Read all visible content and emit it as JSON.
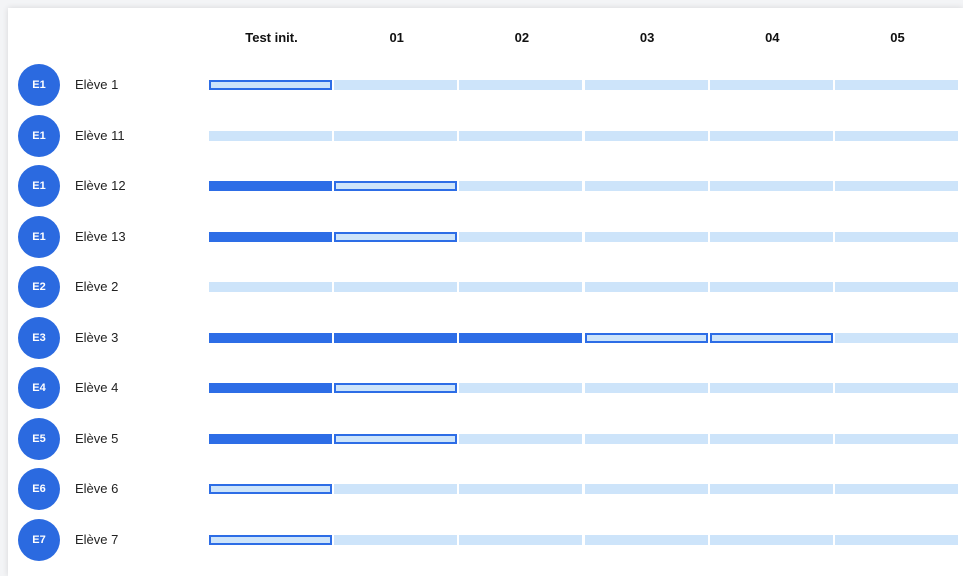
{
  "table": {
    "columns": [
      "Test init.",
      "01",
      "02",
      "03",
      "04",
      "05"
    ],
    "rows": [
      {
        "badge": "E1",
        "name": "Elève 1",
        "cells": [
          "current",
          "todo",
          "todo",
          "todo",
          "todo",
          "todo"
        ]
      },
      {
        "badge": "E1",
        "name": "Elève 11",
        "cells": [
          "todo",
          "todo",
          "todo",
          "todo",
          "todo",
          "todo"
        ]
      },
      {
        "badge": "E1",
        "name": "Elève 12",
        "cells": [
          "done",
          "current",
          "todo",
          "todo",
          "todo",
          "todo"
        ]
      },
      {
        "badge": "E1",
        "name": "Elève 13",
        "cells": [
          "done",
          "current",
          "todo",
          "todo",
          "todo",
          "todo"
        ]
      },
      {
        "badge": "E2",
        "name": "Elève 2",
        "cells": [
          "todo",
          "todo",
          "todo",
          "todo",
          "todo",
          "todo"
        ]
      },
      {
        "badge": "E3",
        "name": "Elève 3",
        "cells": [
          "done",
          "done",
          "done",
          "current",
          "current",
          "todo"
        ]
      },
      {
        "badge": "E4",
        "name": "Elève 4",
        "cells": [
          "done",
          "current",
          "todo",
          "todo",
          "todo",
          "todo"
        ]
      },
      {
        "badge": "E5",
        "name": "Elève 5",
        "cells": [
          "done",
          "current",
          "todo",
          "todo",
          "todo",
          "todo"
        ]
      },
      {
        "badge": "E6",
        "name": "Elève 6",
        "cells": [
          "current",
          "todo",
          "todo",
          "todo",
          "todo",
          "todo"
        ]
      },
      {
        "badge": "E7",
        "name": "Elève 7",
        "cells": [
          "current",
          "todo",
          "todo",
          "todo",
          "todo",
          "todo"
        ]
      }
    ]
  }
}
